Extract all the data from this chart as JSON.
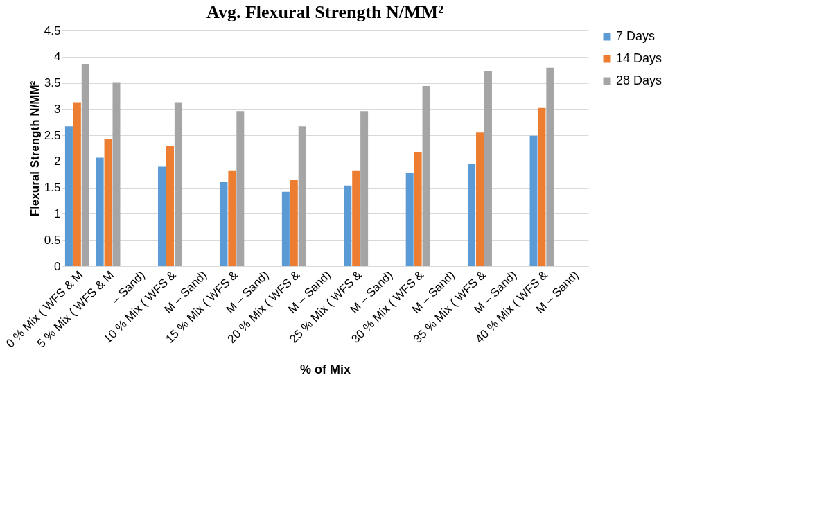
{
  "chart_data": {
    "type": "bar",
    "title": "Avg. Flexural Strength N/MM²",
    "xlabel": "% of Mix",
    "ylabel": "Flexural  Strength N/MM²",
    "categories": [
      "0 % Mix ( WFS & M",
      "5 % Mix ( WFS & M",
      "– Sand)",
      "10 % Mix ( WFS &",
      "M – Sand)",
      "15 % Mix ( WFS &",
      "M – Sand)",
      "20 % Mix ( WFS &",
      "M – Sand)",
      "25 % Mix ( WFS &",
      "M – Sand)",
      "30 % Mix ( WFS &",
      "M – Sand)",
      "35 % Mix ( WFS &",
      "M – Sand)",
      "40 % Mix ( WFS &",
      "M – Sand)"
    ],
    "series": [
      {
        "name": "7 Days",
        "color": "#5b9bd5",
        "values": [
          2.67,
          2.07,
          null,
          1.9,
          null,
          1.6,
          null,
          1.42,
          null,
          1.54,
          null,
          1.78,
          null,
          1.96,
          null,
          2.49,
          null
        ]
      },
      {
        "name": "14 Days",
        "color": "#ed7d31",
        "values": [
          3.13,
          2.43,
          null,
          2.3,
          null,
          1.83,
          null,
          1.65,
          null,
          1.83,
          null,
          2.18,
          null,
          2.55,
          null,
          3.02,
          null
        ]
      },
      {
        "name": "28 Days",
        "color": "#a5a5a5",
        "values": [
          3.85,
          3.5,
          null,
          3.13,
          null,
          2.96,
          null,
          2.67,
          null,
          2.96,
          null,
          3.44,
          null,
          3.73,
          null,
          3.79,
          null
        ]
      }
    ],
    "ylim": [
      0,
      4.5
    ],
    "yticks": [
      0,
      0.5,
      1,
      1.5,
      2,
      2.5,
      3,
      3.5,
      4,
      4.5
    ],
    "grid": "y",
    "legend": "right"
  }
}
